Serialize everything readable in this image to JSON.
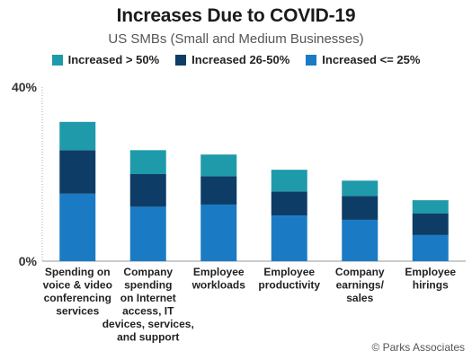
{
  "chart_data": {
    "type": "bar",
    "stacked": true,
    "title": "Increases Due to COVID-19",
    "subtitle": "US SMBs (Small and Medium Businesses)",
    "xlabel": "",
    "ylabel": "",
    "ylim": [
      0,
      40
    ],
    "yticks": [
      "0%",
      "40%"
    ],
    "ytick_values": [
      0,
      40
    ],
    "grid": false,
    "legend_position": "top",
    "categories": [
      "Spending on voice & video conferencing services",
      "Company spending on Internet access, IT devices, services, and support",
      "Employee workloads",
      "Employee productivity",
      "Company earnings/ sales",
      "Employee hirings"
    ],
    "category_lines": [
      [
        "Spending on",
        "voice & video",
        "conferencing",
        "services"
      ],
      [
        "Company",
        "spending",
        "on Internet",
        "access, IT",
        "devices, services,",
        "and support"
      ],
      [
        "Employee",
        "workloads"
      ],
      [
        "Employee",
        "productivity"
      ],
      [
        "Company",
        "earnings/",
        "sales"
      ],
      [
        "Employee",
        "hirings"
      ]
    ],
    "series": [
      {
        "name": "Increased <= 25%",
        "color": "#1a7bc4",
        "values": [
          15.5,
          12.5,
          13,
          10.5,
          9.5,
          6
        ]
      },
      {
        "name": "Increased 26-50%",
        "color": "#0d3d66",
        "values": [
          10,
          7.5,
          6.5,
          5.5,
          5.5,
          5
        ]
      },
      {
        "name": "Increased > 50%",
        "color": "#1f9aaa",
        "values": [
          6.5,
          5.5,
          5,
          5,
          3.5,
          3
        ]
      }
    ],
    "legend_order": [
      "Increased > 50%",
      "Increased 26-50%",
      "Increased <= 25%"
    ]
  },
  "legend": {
    "items": [
      {
        "label": "Increased > 50%",
        "color": "#1f9aaa"
      },
      {
        "label": "Increased 26-50%",
        "color": "#0d3d66"
      },
      {
        "label": "Increased <= 25%",
        "color": "#1a7bc4"
      }
    ]
  },
  "source": "© Parks Associates"
}
